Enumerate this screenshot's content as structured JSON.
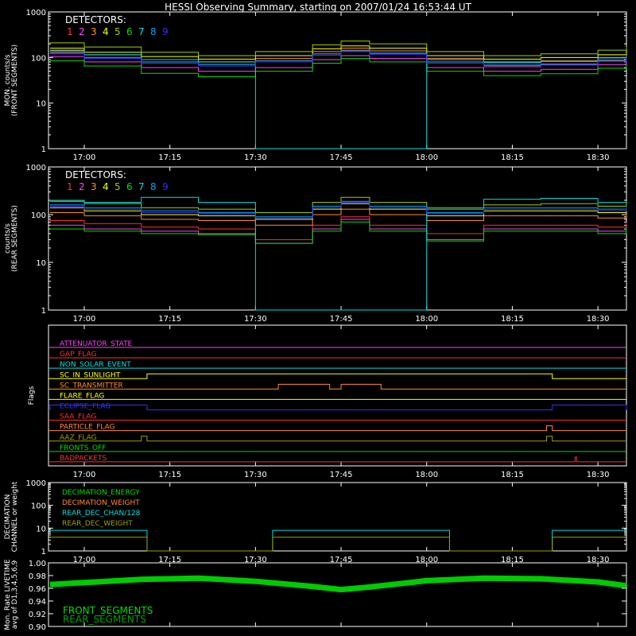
{
  "title": "HESSI Observing Summary, starting on 2007/01/24 16:53:44 UT",
  "time_axis": {
    "start": "16:53:44",
    "end": "18:35",
    "ticks": [
      "17:00",
      "17:15",
      "17:30",
      "17:45",
      "18:00",
      "18:15",
      "18:30"
    ]
  },
  "colors": {
    "det1": "#ff3030",
    "det2": "#ff40ff",
    "det3": "#ff8c30",
    "det4": "#ffff00",
    "det5": "#a0d000",
    "det6": "#00e000",
    "det7": "#00e0e0",
    "det8": "#00a0ff",
    "det9": "#3030ff",
    "frame": "#ffffff",
    "bg": "#000000"
  },
  "chart_data": [
    {
      "type": "line",
      "ylabel_lines": [
        "MON. counts/s",
        "(FRONT SEGMENTS)"
      ],
      "ytick_labels": [
        "1",
        "10",
        "100",
        "1000"
      ],
      "ylim": [
        1,
        1000
      ],
      "yscale": "log",
      "legend_title": "DETECTORS:",
      "legend_digits": [
        "1",
        "2",
        "3",
        "4",
        "5",
        "6",
        "7",
        "8",
        "9"
      ],
      "x": [
        "16:54",
        "17:00",
        "17:10",
        "17:20",
        "17:30",
        "17:40",
        "17:45",
        "17:50",
        "18:00",
        "18:10",
        "18:20",
        "18:30",
        "18:35"
      ],
      "series": [
        {
          "name": "1",
          "values": [
            130,
            100,
            80,
            70,
            85,
            120,
            140,
            120,
            80,
            65,
            70,
            85,
            100
          ]
        },
        {
          "name": "2",
          "values": [
            105,
            80,
            60,
            50,
            60,
            90,
            110,
            95,
            60,
            50,
            55,
            70,
            85
          ]
        },
        {
          "name": "3",
          "values": [
            145,
            115,
            90,
            80,
            95,
            135,
            160,
            140,
            95,
            80,
            85,
            100,
            120
          ]
        },
        {
          "name": "4",
          "values": [
            160,
            130,
            105,
            92,
            110,
            155,
            180,
            160,
            110,
            92,
            100,
            115,
            135
          ]
        },
        {
          "name": "5",
          "values": [
            210,
            170,
            130,
            110,
            135,
            190,
            230,
            200,
            135,
            110,
            120,
            145,
            175
          ]
        },
        {
          "name": "6",
          "values": [
            85,
            65,
            45,
            38,
            50,
            75,
            95,
            80,
            50,
            40,
            44,
            58,
            72
          ]
        },
        {
          "name": "7",
          "values": [
            140,
            115,
            90,
            80,
            1,
            1,
            1,
            1,
            90,
            78,
            82,
            98,
            115
          ]
        },
        {
          "name": "8",
          "values": [
            125,
            100,
            80,
            70,
            85,
            120,
            145,
            125,
            80,
            68,
            72,
            88,
            105
          ]
        },
        {
          "name": "9",
          "values": [
            120,
            95,
            75,
            65,
            80,
            112,
            135,
            118,
            75,
            62,
            68,
            82,
            100
          ]
        }
      ]
    },
    {
      "type": "line",
      "ylabel_lines": [
        "counts/s",
        "(REAR SEGMENTS)"
      ],
      "ytick_labels": [
        "1",
        "10",
        "100",
        "1000"
      ],
      "ylim": [
        1,
        1000
      ],
      "yscale": "log",
      "legend_title": "DETECTORS:",
      "legend_digits": [
        "1",
        "2",
        "3",
        "4",
        "5",
        "6",
        "7",
        "8",
        "9"
      ],
      "x": [
        "16:54",
        "17:00",
        "17:10",
        "17:20",
        "17:30",
        "17:40",
        "17:45",
        "17:50",
        "18:00",
        "18:10",
        "18:20",
        "18:30",
        "18:35"
      ],
      "series": [
        {
          "name": "1",
          "values": [
            75,
            65,
            55,
            50,
            30,
            60,
            90,
            60,
            40,
            60,
            60,
            55,
            70
          ]
        },
        {
          "name": "2",
          "values": [
            60,
            50,
            45,
            40,
            25,
            50,
            80,
            50,
            30,
            50,
            50,
            45,
            60
          ]
        },
        {
          "name": "3",
          "values": [
            110,
            95,
            80,
            75,
            60,
            100,
            130,
            100,
            75,
            95,
            95,
            85,
            105
          ]
        },
        {
          "name": "4",
          "values": [
            140,
            120,
            100,
            95,
            80,
            130,
            170,
            130,
            95,
            120,
            120,
            110,
            135
          ]
        },
        {
          "name": "5",
          "values": [
            190,
            170,
            140,
            130,
            110,
            180,
            230,
            180,
            130,
            160,
            170,
            150,
            180
          ]
        },
        {
          "name": "6",
          "values": [
            50,
            45,
            40,
            38,
            25,
            45,
            70,
            45,
            28,
            45,
            45,
            40,
            55
          ]
        },
        {
          "name": "7",
          "values": [
            200,
            180,
            230,
            180,
            1,
            1,
            1,
            1,
            140,
            210,
            220,
            180,
            190
          ]
        },
        {
          "name": "8",
          "values": [
            160,
            140,
            120,
            110,
            90,
            150,
            190,
            150,
            110,
            140,
            140,
            130,
            155
          ]
        },
        {
          "name": "9",
          "values": [
            150,
            130,
            110,
            105,
            85,
            140,
            180,
            140,
            105,
            130,
            130,
            120,
            145
          ]
        }
      ]
    },
    {
      "type": "flags",
      "ylabel": "Flags",
      "flags": [
        {
          "name": "ATTENUATOR_STATE",
          "color": "#ff40ff",
          "events": []
        },
        {
          "name": "GAP_FLAG",
          "color": "#ff3030",
          "events": []
        },
        {
          "name": "NON_SOLAR_EVENT",
          "color": "#00e0e0",
          "events": []
        },
        {
          "name": "SC_IN_SUNLIGHT",
          "color": "#ffff00",
          "events": [
            [
              "17:11",
              "18:22"
            ]
          ]
        },
        {
          "name": "SC_TRANSMITTER",
          "color": "#ff8c30",
          "events": [
            [
              "17:34",
              "17:43"
            ],
            [
              "17:45",
              "17:52"
            ]
          ]
        },
        {
          "name": "FLARE_FLAG",
          "color": "#ffff00",
          "events": []
        },
        {
          "name": "ECLIPSE_FLAG",
          "color": "#3030ff",
          "events": [
            [
              "16:54",
              "17:11"
            ],
            [
              "18:22",
              "18:35"
            ]
          ]
        },
        {
          "name": "SAA_FLAG",
          "color": "#ff3030",
          "events": []
        },
        {
          "name": "PARTICLE_FLAG",
          "color": "#ff8c30",
          "events": [
            [
              "18:21",
              "18:22"
            ]
          ]
        },
        {
          "name": "AAZ_FLAG",
          "color": "#a0a000",
          "events": [
            [
              "17:10",
              "17:11"
            ],
            [
              "18:21",
              "18:22"
            ]
          ]
        },
        {
          "name": "FRONTS_OFF",
          "color": "#00e000",
          "events": []
        },
        {
          "name": "BADPACKETS",
          "color": "#ff3030",
          "events": [
            [
              "18:26",
              "18:26"
            ]
          ]
        }
      ]
    },
    {
      "type": "line",
      "ylabel_lines": [
        "DECIMATION",
        "CHANNEL or weight"
      ],
      "ytick_labels": [
        "1",
        "10",
        "100",
        "1000"
      ],
      "ylim": [
        1,
        1000
      ],
      "yscale": "log",
      "legend": [
        {
          "name": "DECIMATION_ENERGY",
          "color": "#00e000"
        },
        {
          "name": "DECIMATION_WEIGHT",
          "color": "#ff8c30"
        },
        {
          "name": "REAR_DEC_CHAN/128",
          "color": "#00e0e0"
        },
        {
          "name": "REAR_DEC_WEIGHT",
          "color": "#a0a000"
        }
      ],
      "x": [
        "16:54",
        "17:11",
        "17:11",
        "17:33",
        "17:33",
        "18:04",
        "18:04",
        "18:22",
        "18:22",
        "18:35"
      ],
      "series": [
        {
          "name": "REAR_DEC_CHAN/128",
          "values": [
            8,
            8,
            1,
            1,
            8,
            8,
            1,
            1,
            8,
            8
          ]
        },
        {
          "name": "REAR_DEC_WEIGHT",
          "values": [
            4,
            4,
            1,
            1,
            4,
            4,
            1,
            1,
            4,
            4
          ]
        }
      ]
    },
    {
      "type": "line",
      "ylabel_lines": [
        "Mon. Rate LIVETIME",
        "avg of D1,3,4,5,6,9"
      ],
      "ytick_labels": [
        "0.90",
        "0.92",
        "0.94",
        "0.96",
        "0.98",
        "1.00"
      ],
      "ylim": [
        0.9,
        1.0
      ],
      "legend": [
        {
          "name": "FRONT_SEGMENTS",
          "color": "#00e000"
        },
        {
          "name": "REAR_SEGMENTS",
          "color": "#00a000"
        }
      ],
      "x": [
        "16:54",
        "17:00",
        "17:10",
        "17:20",
        "17:30",
        "17:40",
        "17:45",
        "17:50",
        "18:00",
        "18:10",
        "18:20",
        "18:30",
        "18:35"
      ],
      "series": [
        {
          "name": "FRONT_SEGMENTS",
          "values": [
            0.966,
            0.969,
            0.974,
            0.976,
            0.971,
            0.963,
            0.958,
            0.962,
            0.972,
            0.976,
            0.975,
            0.97,
            0.964
          ]
        }
      ]
    }
  ]
}
